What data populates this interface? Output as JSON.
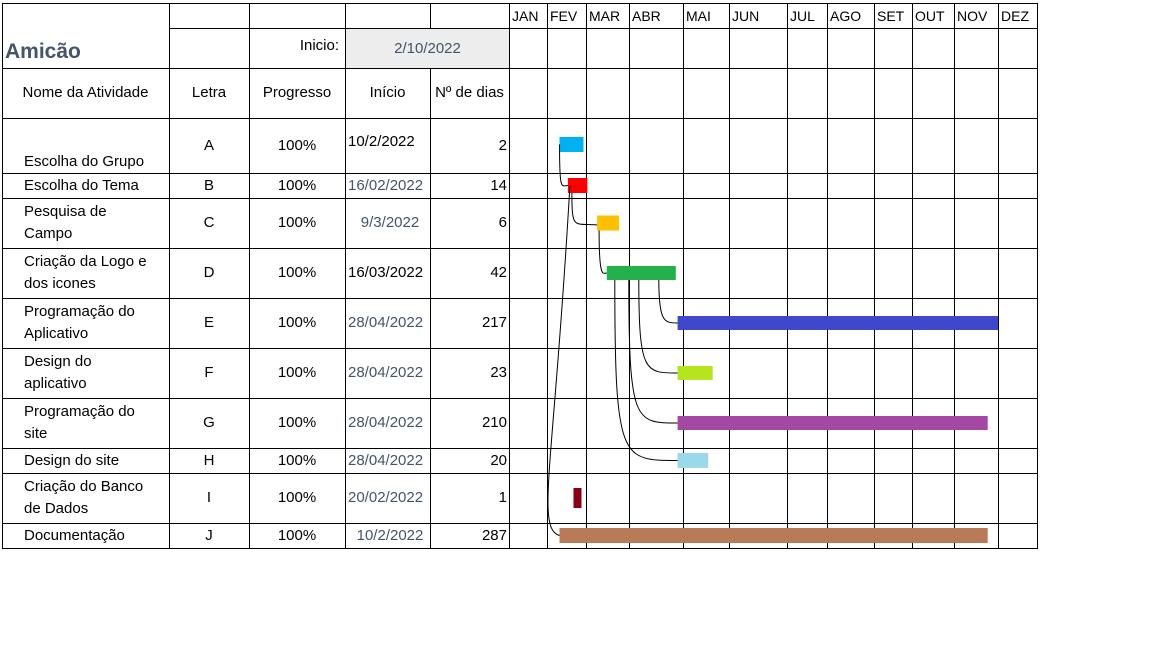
{
  "sheet": {
    "title": "Amicão",
    "start_label": "Inicio:",
    "start_value": "2/10/2022",
    "headers": {
      "name": "Nome da Atividade",
      "letter": "Letra",
      "progress": "Progresso",
      "start": "Início",
      "days": "Nº de dias"
    },
    "months": [
      "JAN",
      "FEV",
      "MAR",
      "ABR",
      "MAI",
      "JUN",
      "JUL",
      "AGO",
      "SET",
      "OUT",
      "NOV",
      "DEZ"
    ],
    "rows": [
      {
        "name": "Escolha do Grupo",
        "letter": "A",
        "progress": "100%",
        "start": "10/2/2022",
        "days": "2",
        "color": "#00b0f0"
      },
      {
        "name": "Escolha do Tema",
        "letter": "B",
        "progress": "100%",
        "start": "16/02/2022",
        "days": "14",
        "color": "#ff0000"
      },
      {
        "name": "Pesquisa de Campo",
        "letter": "C",
        "progress": "100%",
        "start": "9/3/2022",
        "days": "6",
        "color": "#ffc000"
      },
      {
        "name": "Criação da Logo e dos icones",
        "letter": "D",
        "progress": "100%",
        "start": "16/03/2022",
        "days": "42",
        "color": "#22b14c"
      },
      {
        "name": "Programação do Aplicativo",
        "letter": "E",
        "progress": "100%",
        "start": "28/04/2022",
        "days": "217",
        "color": "#3f48cc"
      },
      {
        "name": "Design do aplicativo",
        "letter": "F",
        "progress": "100%",
        "start": "28/04/2022",
        "days": "23",
        "color": "#b5e61d"
      },
      {
        "name": "Programação do site",
        "letter": "G",
        "progress": "100%",
        "start": "28/04/2022",
        "days": "210",
        "color": "#a349a4"
      },
      {
        "name": "Design do site",
        "letter": "H",
        "progress": "100%",
        "start": "28/04/2022",
        "days": "20",
        "color": "#99d9ea"
      },
      {
        "name": "Criação do Banco de Dados",
        "letter": "I",
        "progress": "100%",
        "start": "20/02/2022",
        "days": "1",
        "color": "#880015"
      },
      {
        "name": "Documentação",
        "letter": "J",
        "progress": "100%",
        "start": "10/2/2022",
        "days": "287",
        "color": "#b97a57"
      }
    ]
  }
}
